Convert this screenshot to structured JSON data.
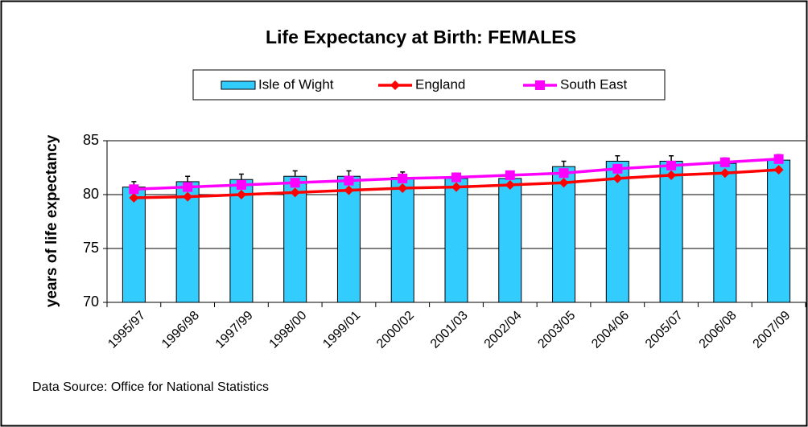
{
  "chart_data": {
    "type": "bar",
    "title": "Life Expectancy at Birth: FEMALES",
    "y_label": "years of life expectancy",
    "source": "Data Source: Office for National Statistics",
    "categories": [
      "1995/97",
      "1996/98",
      "1997/99",
      "1998/00",
      "1999/01",
      "2000/02",
      "2001/03",
      "2002/04",
      "2003/05",
      "2004/06",
      "2005/07",
      "2006/08",
      "2007/09"
    ],
    "series": [
      {
        "name": "Isle of Wight",
        "type": "bar",
        "color": "#33ccff",
        "values": [
          80.7,
          81.2,
          81.4,
          81.7,
          81.7,
          81.6,
          81.5,
          81.5,
          82.6,
          83.1,
          83.1,
          82.9,
          83.2
        ],
        "errors": [
          0.5,
          0.5,
          0.5,
          0.5,
          0.5,
          0.5,
          0.5,
          0.5,
          0.5,
          0.5,
          0.5,
          0.5,
          0.5
        ]
      },
      {
        "name": "England",
        "type": "line",
        "color": "#ff0000",
        "marker": "diamond",
        "values": [
          79.7,
          79.8,
          80.0,
          80.2,
          80.4,
          80.6,
          80.7,
          80.9,
          81.1,
          81.5,
          81.8,
          82.0,
          82.3
        ]
      },
      {
        "name": "South East",
        "type": "line",
        "color": "#ff00ff",
        "marker": "square",
        "values": [
          80.5,
          80.7,
          80.9,
          81.1,
          81.3,
          81.5,
          81.6,
          81.8,
          82.0,
          82.4,
          82.7,
          83.0,
          83.3
        ]
      }
    ],
    "ylim": [
      70,
      85
    ],
    "yticks": [
      70,
      75,
      80,
      85
    ],
    "grid": true
  }
}
